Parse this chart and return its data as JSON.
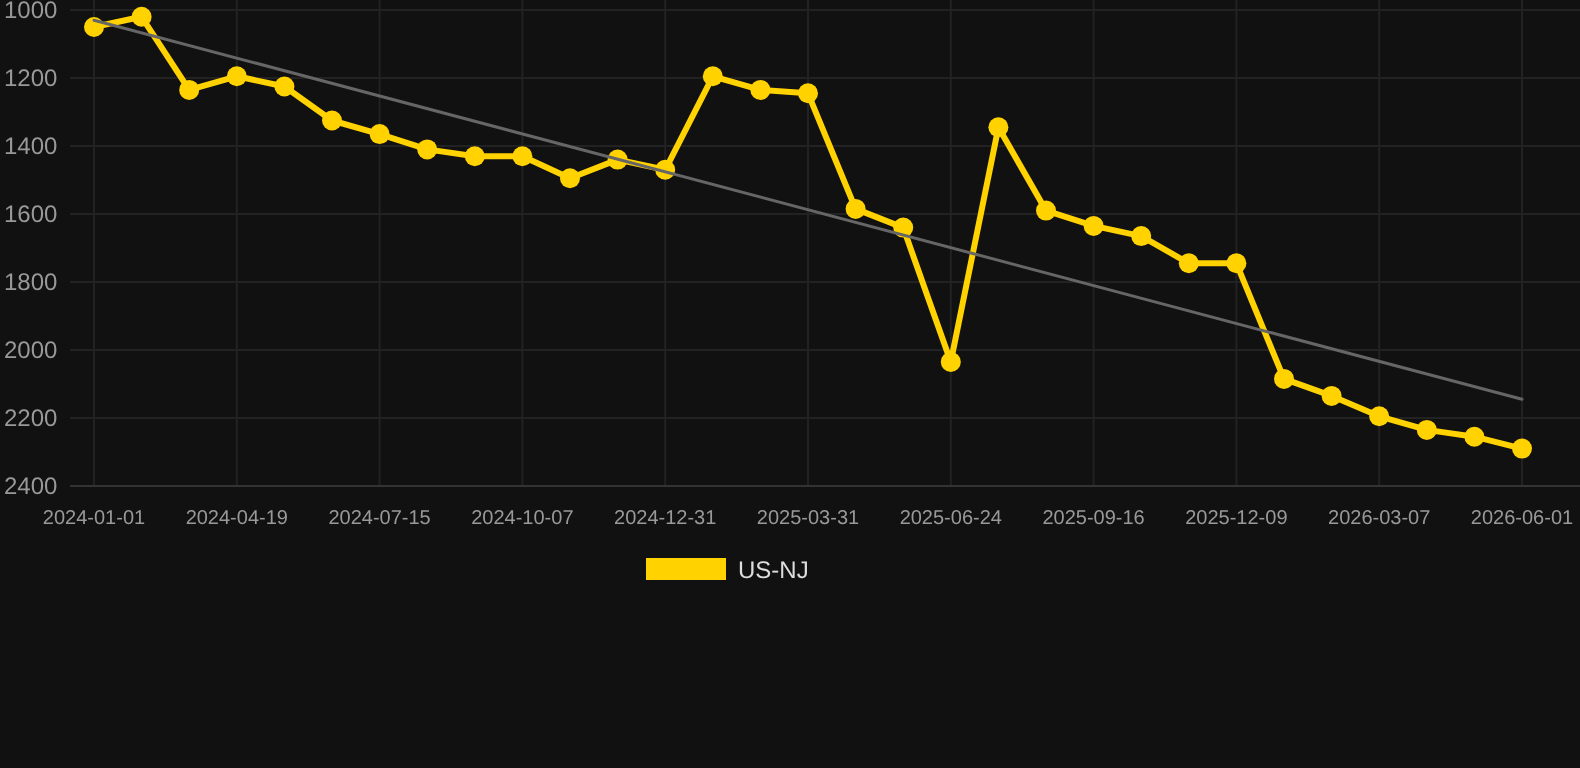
{
  "chart_data": {
    "type": "line",
    "categories": [
      "2024-01-01",
      null,
      null,
      "2024-04-19",
      null,
      null,
      "2024-07-15",
      null,
      null,
      "2024-10-07",
      null,
      null,
      "2024-12-31",
      null,
      null,
      "2025-03-31",
      null,
      null,
      "2025-06-24",
      null,
      null,
      "2025-09-16",
      null,
      null,
      "2025-12-09",
      null,
      null,
      "2026-03-07",
      null,
      null,
      "2026-06-01"
    ],
    "series": [
      {
        "name": "US-NJ",
        "color": "#ffd200",
        "marker": "circle",
        "values": [
          1050,
          1020,
          1235,
          1195,
          1225,
          1325,
          1365,
          1410,
          1430,
          1430,
          1495,
          1440,
          1470,
          1195,
          1235,
          1245,
          1585,
          1640,
          2035,
          1345,
          1590,
          1635,
          1665,
          1745,
          1745,
          2085,
          2135,
          2195,
          2235,
          2255,
          2290
        ]
      },
      {
        "type": "line",
        "color": "#666666",
        "marker": "none",
        "values": [
          1030,
          null,
          null,
          null,
          null,
          null,
          null,
          null,
          null,
          null,
          null,
          null,
          null,
          null,
          null,
          null,
          null,
          null,
          null,
          null,
          null,
          null,
          null,
          null,
          null,
          null,
          null,
          null,
          null,
          null,
          2145
        ]
      }
    ],
    "ylim": [
      2400,
      1000
    ],
    "yticks": [
      1000,
      1200,
      1400,
      1600,
      1800,
      2000,
      2200,
      2400
    ],
    "grid": true,
    "legend": "bottom"
  }
}
